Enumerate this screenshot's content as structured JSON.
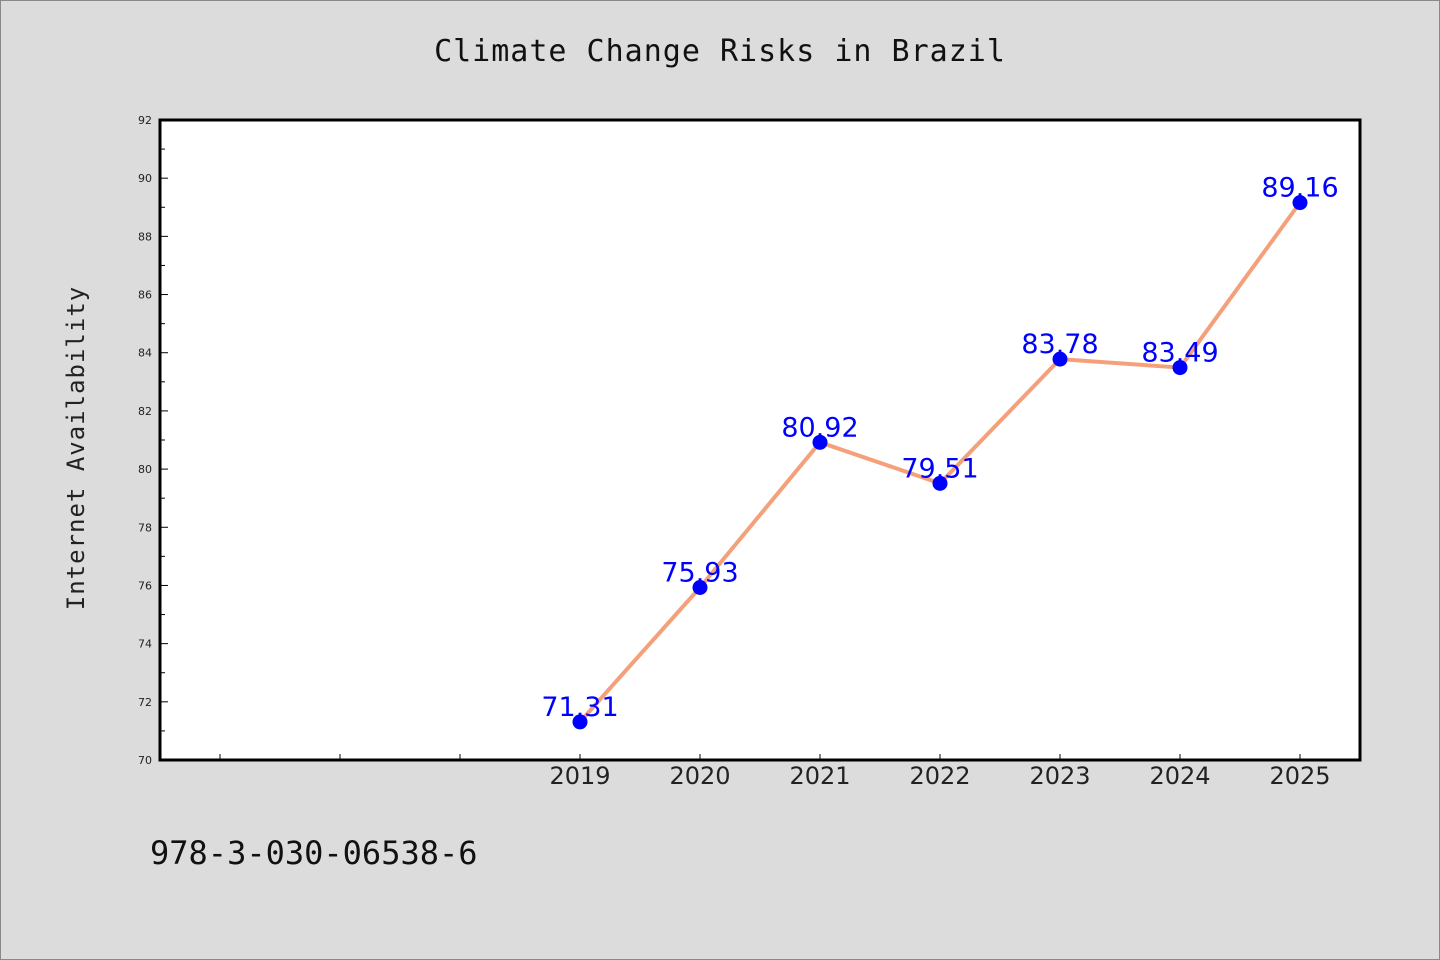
{
  "chart_data": {
    "type": "line",
    "title": "Climate Change Risks in Brazil",
    "ylabel": "Internet Availability",
    "xlabel": "",
    "categories": [
      "2019",
      "2020",
      "2021",
      "2022",
      "2023",
      "2024",
      "2025"
    ],
    "series": [
      {
        "values": [
          71.31,
          75.93,
          80.92,
          79.51,
          83.78,
          83.49,
          89.16
        ],
        "data_labels": [
          "71.31",
          "75.93",
          "80.92",
          "79.51",
          "83.78",
          "83.49",
          "89.16"
        ],
        "line_color": "#f4a07a",
        "marker_color": "#0000ff"
      }
    ],
    "ylim": [
      70,
      92
    ],
    "y_ticks": [
      "70",
      "72",
      "74",
      "76",
      "78",
      "80",
      "82",
      "84",
      "86",
      "88",
      "90",
      "92"
    ],
    "grid": false,
    "legend": "none"
  },
  "footer": {
    "isbn": "978-3-030-06538-6"
  },
  "colors": {
    "background": "#dcdcdc",
    "plot_background": "#ffffff",
    "axis": "#000000",
    "label_color": "#0000ff"
  }
}
